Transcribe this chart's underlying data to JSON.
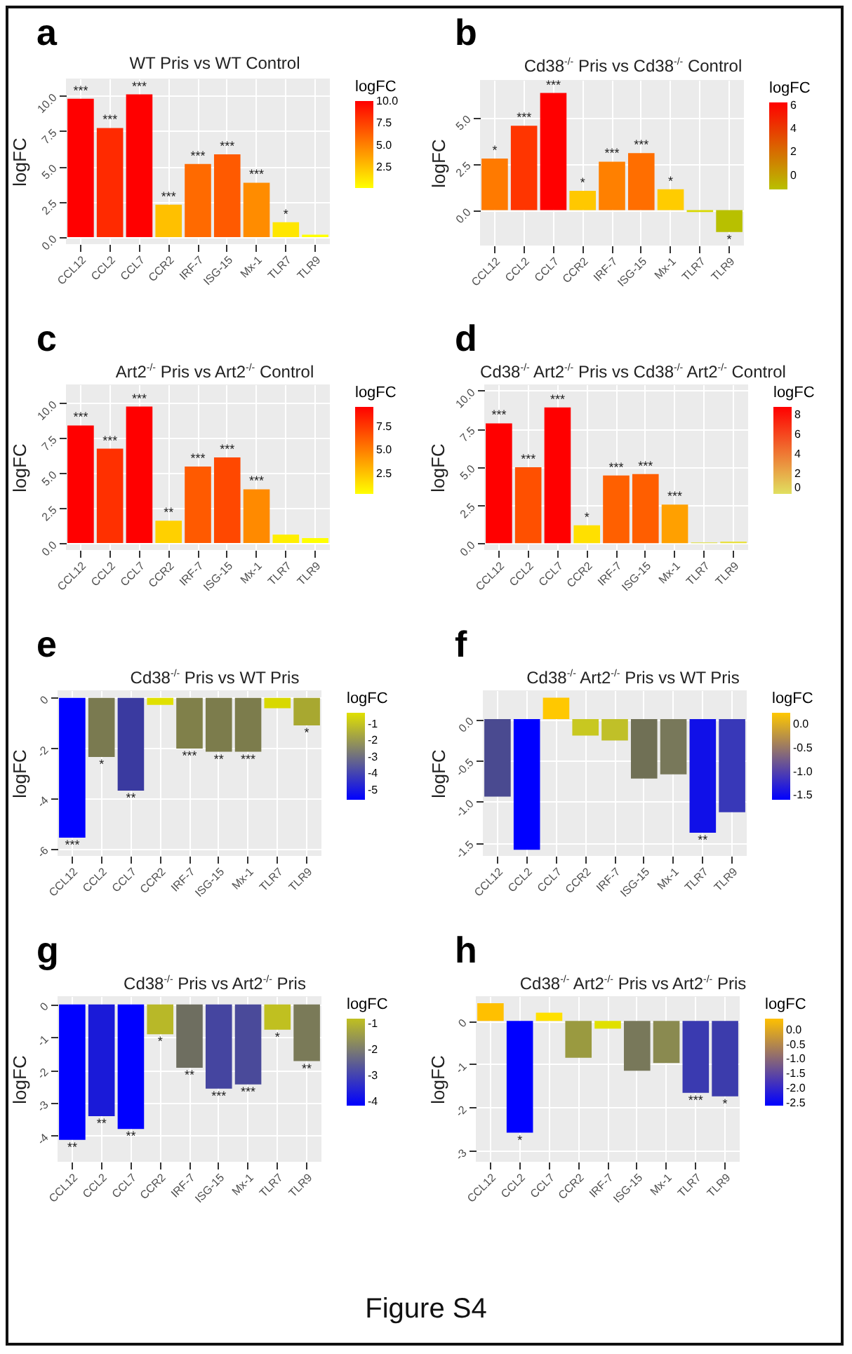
{
  "chart_data": [
    {
      "type": "bar",
      "title": "WT Pris vs WT Control",
      "ylabel": "logFC",
      "clabel": "logFC",
      "annotations": [
        "a"
      ],
      "grid": true,
      "categories": [
        "CCL12",
        "CCL2",
        "CCL7",
        "CCR2",
        "IRF-7",
        "ISG-15",
        "Mx-1",
        "TLR7",
        "TLR9"
      ],
      "values": [
        9.77,
        7.71,
        10.08,
        2.29,
        5.17,
        5.85,
        3.84,
        1.05,
        0.17
      ],
      "colors": [
        "#ff0000",
        "#ff2a00",
        "#ff0000",
        "#ffc000",
        "#ff6a00",
        "#ff5a00",
        "#ff8c00",
        "#ffe600",
        "#ffff00"
      ],
      "value_labels": [
        "***",
        "***",
        "***",
        "***",
        "***",
        "***",
        "***",
        "*",
        null
      ],
      "ylim": [
        -0.5,
        11.2
      ],
      "yticks": [
        {
          "value": 0,
          "label": "0.0"
        },
        2.5,
        {
          "value": 5,
          "label": "5.0"
        },
        7.5,
        {
          "value": 10,
          "label": "10.0"
        }
      ],
      "clim": [
        0.17,
        10.08
      ],
      "cticks": [
        2.5,
        {
          "value": 5,
          "label": "5.0"
        },
        7.5,
        {
          "value": 10,
          "label": "10.0"
        }
      ]
    },
    {
      "type": "bar",
      "title": "Cd38$^{-/-}$ Pris vs Cd38$^{-/-}$ Control",
      "ylabel": "logFC",
      "clabel": "logFC",
      "annotations": [
        "b"
      ],
      "grid": true,
      "categories": [
        "CCL12",
        "CCL2",
        "CCL7",
        "CCR2",
        "IRF-7",
        "ISG-15",
        "Mx-1",
        "TLR7",
        "TLR9"
      ],
      "values": [
        2.78,
        4.54,
        6.3,
        1.04,
        2.61,
        3.07,
        1.13,
        -0.1,
        -1.17
      ],
      "colors": [
        "#ff7a00",
        "#ff3500",
        "#ff0000",
        "#ffc800",
        "#ff8000",
        "#ff6e00",
        "#ffcc00",
        "#d8d800",
        "#b8c000"
      ],
      "value_labels": [
        "*",
        "***",
        "***",
        "*",
        "***",
        "***",
        "*",
        null,
        "*"
      ],
      "ylim": [
        -1.9,
        7.0
      ],
      "yticks": [
        {
          "value": 0,
          "label": "0.0"
        },
        2.5,
        {
          "value": 5,
          "label": "5.0"
        }
      ],
      "clim": [
        -1.17,
        6.3
      ],
      "cticks": [
        0,
        2,
        4,
        6
      ]
    },
    {
      "type": "bar",
      "title": "Art2$^{-/-}$ Pris vs Art2$^{-/-}$ Control",
      "ylabel": "logFC",
      "clabel": "logFC",
      "annotations": [
        "c"
      ],
      "grid": true,
      "categories": [
        "CCL12",
        "CCL2",
        "CCL7",
        "CCR2",
        "IRF-7",
        "ISG-15",
        "Mx-1",
        "TLR7",
        "TLR9"
      ],
      "values": [
        8.38,
        6.72,
        9.72,
        1.59,
        5.45,
        6.1,
        3.83,
        0.6,
        0.35
      ],
      "colors": [
        "#ff0000",
        "#ff3000",
        "#ff0000",
        "#ffd000",
        "#ff5a00",
        "#ff4800",
        "#ff8a00",
        "#ffee00",
        "#ffff00"
      ],
      "value_labels": [
        "***",
        "***",
        "***",
        "**",
        "***",
        "***",
        "***",
        null,
        null
      ],
      "ylim": [
        -0.5,
        11.3
      ],
      "yticks": [
        {
          "value": 0,
          "label": "0.0"
        },
        2.5,
        {
          "value": 5,
          "label": "5.0"
        },
        7.5,
        {
          "value": 10,
          "label": "10.0"
        }
      ],
      "clim": [
        0.35,
        9.72
      ],
      "cticks": [
        2.5,
        {
          "value": 5,
          "label": "5.0"
        },
        7.5
      ]
    },
    {
      "type": "bar",
      "title": "Cd38$^{-/-}$ Art2$^{-/-}$ Pris vs Cd38$^{-/-}$ Art2$^{-/-}$ Control",
      "ylabel": "logFC",
      "clabel": "logFC",
      "annotations": [
        "d"
      ],
      "grid": true,
      "categories": [
        "CCL12",
        "CCL2",
        "CCL7",
        "CCR2",
        "IRF-7",
        "ISG-15",
        "Mx-1",
        "TLR7",
        "TLR9"
      ],
      "values": [
        7.85,
        4.97,
        8.89,
        1.17,
        4.43,
        4.53,
        2.53,
        0.05,
        0.1
      ],
      "colors": [
        "#ff0000",
        "#ff5000",
        "#ff0000",
        "#ffe000",
        "#ff6000",
        "#ff5e00",
        "#ffa000",
        "#e0e060",
        "#e8e040"
      ],
      "value_labels": [
        "***",
        "***",
        "***",
        "*",
        "***",
        "***",
        "***",
        null,
        null
      ],
      "ylim": [
        -0.45,
        10.4
      ],
      "yticks": [
        {
          "value": 0,
          "label": "0.0"
        },
        2.5,
        {
          "value": 5,
          "label": "5.0"
        },
        7.5,
        {
          "value": 10,
          "label": "10.0"
        }
      ],
      "clim": [
        0,
        8.89
      ],
      "cticks": [
        0,
        2,
        4,
        6,
        8
      ]
    },
    {
      "type": "bar",
      "title": "Cd38$^{-/-}$ Pris vs WT Pris",
      "ylabel": "logFC",
      "clabel": "logFC",
      "annotations": [
        "e"
      ],
      "grid": true,
      "categories": [
        "CCL12",
        "CCL2",
        "CCL7",
        "CCR2",
        "IRF-7",
        "ISG-15",
        "Mx-1",
        "TLR7",
        "TLR9"
      ],
      "values": [
        -5.57,
        -2.36,
        -3.7,
        -0.28,
        -2.02,
        -2.15,
        -2.15,
        -0.41,
        -1.1
      ],
      "colors": [
        "#0000ff",
        "#7a7a50",
        "#3a3aa0",
        "#e0e000",
        "#80804a",
        "#7c7c4c",
        "#7c7c4c",
        "#d8d800",
        "#a8a830"
      ],
      "value_labels": [
        "***",
        "*",
        "**",
        null,
        "***",
        "**",
        "***",
        null,
        "*"
      ],
      "ylim": [
        -6.3,
        0.3
      ],
      "yticks": [
        0,
        -2,
        -4,
        -6
      ],
      "clim": [
        -5.57,
        -0.28
      ],
      "cticks": [
        -5,
        -4,
        -3,
        -2,
        -1
      ]
    },
    {
      "type": "bar",
      "title": "Cd38$^{-/-}$ Art2$^{-/-}$ Pris vs WT Pris",
      "ylabel": "logFC",
      "clabel": "logFC",
      "annotations": [
        "f"
      ],
      "grid": true,
      "categories": [
        "CCL12",
        "CCL2",
        "CCL7",
        "CCR2",
        "IRF-7",
        "ISG-15",
        "Mx-1",
        "TLR7",
        "TLR9"
      ],
      "values": [
        -0.94,
        -1.585,
        0.26,
        -0.2,
        -0.26,
        -0.72,
        -0.67,
        -1.38,
        -1.13
      ],
      "colors": [
        "#4a4a90",
        "#0000ff",
        "#ffc800",
        "#c8c820",
        "#c0c028",
        "#707055",
        "#78785a",
        "#1010e8",
        "#3838b8"
      ],
      "value_labels": [
        null,
        null,
        null,
        null,
        null,
        null,
        null,
        "**",
        null
      ],
      "ylim": [
        -1.66,
        0.35
      ],
      "yticks": [
        {
          "value": 0,
          "label": "0.0"
        },
        -0.5,
        {
          "value": -1,
          "label": "-1.0"
        },
        -1.5
      ],
      "clim": [
        -1.585,
        0.26
      ],
      "cticks": [
        {
          "value": 0,
          "label": "0.0"
        },
        -0.5,
        {
          "value": -1,
          "label": "-1.0"
        },
        -1.5
      ]
    },
    {
      "type": "bar",
      "title": "Cd38$^{-/-}$ Pris vs Art2$^{-/-}$ Pris",
      "ylabel": "logFC",
      "clabel": "logFC",
      "annotations": [
        "g"
      ],
      "grid": true,
      "categories": [
        "CCL12",
        "CCL2",
        "CCL7",
        "CCR2",
        "IRF-7",
        "ISG-15",
        "Mx-1",
        "TLR7",
        "TLR9"
      ],
      "values": [
        -4.13,
        -3.41,
        -3.8,
        -0.91,
        -1.93,
        -2.57,
        -2.44,
        -0.77,
        -1.73
      ],
      "colors": [
        "#0000ff",
        "#1a1ad8",
        "#0000ff",
        "#b8b828",
        "#6e6e60",
        "#4545a0",
        "#4a4a9a",
        "#c0c020",
        "#7a7a58"
      ],
      "value_labels": [
        "**",
        "**",
        "**",
        "*",
        "**",
        "***",
        "***",
        "*",
        "**"
      ],
      "ylim": [
        -4.8,
        0.25
      ],
      "yticks": [
        0,
        -1,
        -2,
        -3,
        -4
      ],
      "clim": [
        -4.13,
        -0.77
      ],
      "cticks": [
        -4,
        -3,
        -2,
        -1
      ]
    },
    {
      "type": "bar",
      "title": "Cd38$^{-/-}$ Art2$^{-/-}$ Pris vs Art2$^{-/-}$ Pris",
      "ylabel": "logFC",
      "clabel": "logFC",
      "annotations": [
        "h",
        "Figure S4"
      ],
      "grid": true,
      "categories": [
        "CCL12",
        "CCL2",
        "CCL7",
        "CCR2",
        "IRF-7",
        "ISG-15",
        "Mx-1",
        "TLR7",
        "TLR9"
      ],
      "values": [
        0.41,
        -2.58,
        0.19,
        -0.85,
        -0.18,
        -1.15,
        -0.97,
        -1.66,
        -1.74
      ],
      "colors": [
        "#ffc000",
        "#0000ff",
        "#ffe000",
        "#9a9a40",
        "#e0e000",
        "#78785a",
        "#8a8a50",
        "#3a3ab0",
        "#3c3cac"
      ],
      "value_labels": [
        null,
        "*",
        null,
        null,
        null,
        null,
        null,
        "***",
        "*"
      ],
      "ylim": [
        -3.25,
        0.57
      ],
      "yticks": [
        0,
        -1,
        -2,
        -3
      ],
      "clim": [
        -2.58,
        0.41
      ],
      "cticks": [
        {
          "value": 0,
          "label": "0.0"
        },
        -0.5,
        {
          "value": -1,
          "label": "-1.0"
        },
        -1.5,
        {
          "value": -2,
          "label": "-2.0"
        },
        -2.5
      ]
    }
  ]
}
